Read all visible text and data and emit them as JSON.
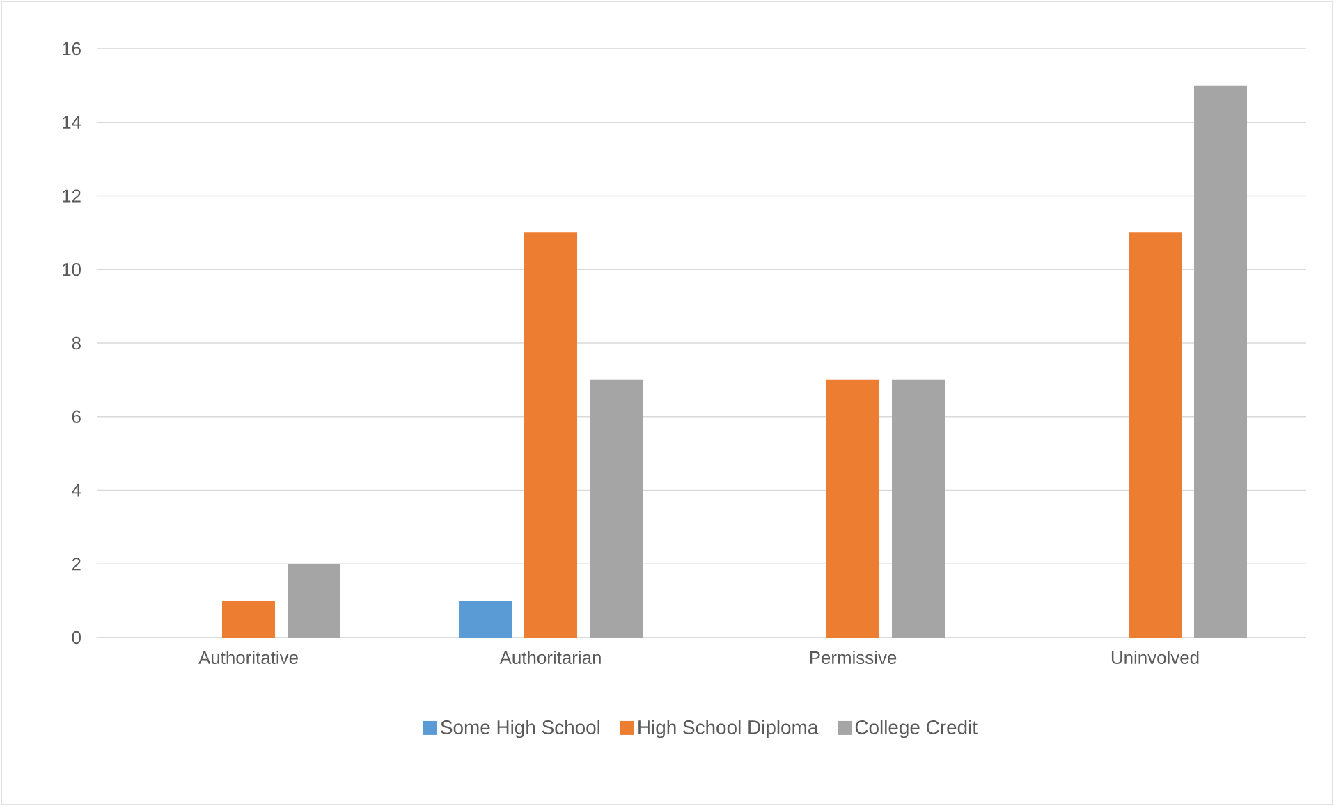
{
  "chart_data": {
    "type": "bar",
    "categories": [
      "Authoritative",
      "Authoritarian",
      "Permissive",
      "Uninvolved"
    ],
    "series": [
      {
        "name": "Some High School",
        "color": "#5b9bd5",
        "values": [
          0,
          1,
          0,
          0
        ]
      },
      {
        "name": "High School Diploma",
        "color": "#ed7d31",
        "values": [
          1,
          11,
          7,
          11
        ]
      },
      {
        "name": "College Credit",
        "color": "#a5a5a5",
        "values": [
          2,
          7,
          7,
          15
        ]
      }
    ],
    "ylim": [
      0,
      16
    ],
    "yticks": [
      0,
      2,
      4,
      6,
      8,
      10,
      12,
      14,
      16
    ],
    "grid": "y",
    "legend": "bottom"
  }
}
